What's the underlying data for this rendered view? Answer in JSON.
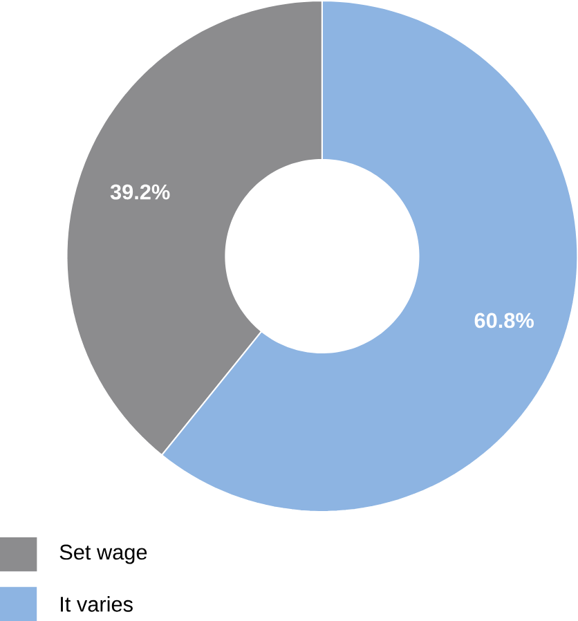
{
  "chart_data": {
    "type": "donut",
    "categories": [
      "Set wage",
      "It varies"
    ],
    "values": [
      39.2,
      60.8
    ],
    "colors": [
      "#8c8c8e",
      "#8db4e2"
    ],
    "value_labels": [
      "39.2%",
      "60.8%"
    ],
    "legend": "bottom left"
  }
}
